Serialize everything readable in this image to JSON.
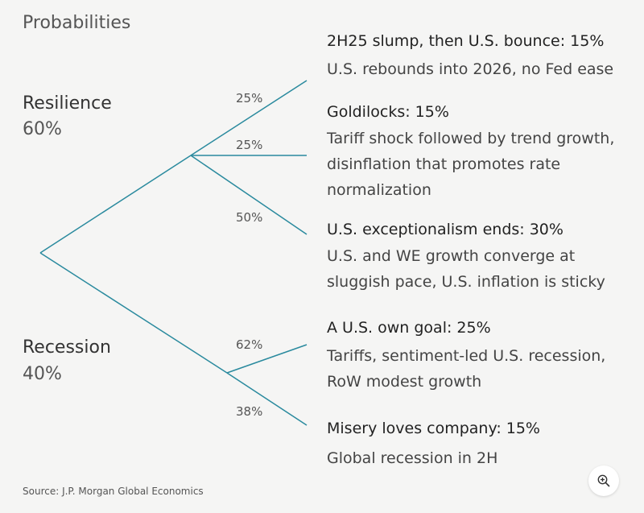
{
  "title": "Probabilities",
  "branches": {
    "resilience": {
      "name": "Resilience",
      "pct": "60%"
    },
    "recession": {
      "name": "Recession",
      "pct": "40%"
    }
  },
  "edges": {
    "e1": "25%",
    "e2": "25%",
    "e3": "50%",
    "e4": "62%",
    "e5": "38%"
  },
  "scenarios": {
    "s1": {
      "title": "2H25 slump, then U.S. bounce: 15%",
      "desc": [
        "U.S. rebounds into 2026, no Fed ease"
      ]
    },
    "s2": {
      "title": "Goldilocks: 15%",
      "desc": [
        "Tariff shock followed by trend growth,",
        "disinflation that promotes rate",
        "normalization"
      ]
    },
    "s3": {
      "title": "U.S. exceptionalism ends: 30%",
      "desc": [
        "U.S. and WE growth converge at",
        "sluggish pace, U.S. inflation is sticky"
      ]
    },
    "s4": {
      "title": "A U.S. own goal: 25%",
      "desc": [
        "Tariffs, sentiment-led U.S. recession,",
        "RoW modest growth"
      ]
    },
    "s5": {
      "title": "Misery loves company: 15%",
      "desc": [
        "Global recession in 2H"
      ]
    }
  },
  "source": "Source: J.P. Morgan Global Economics",
  "colors": {
    "line": "#2a8a9e"
  }
}
